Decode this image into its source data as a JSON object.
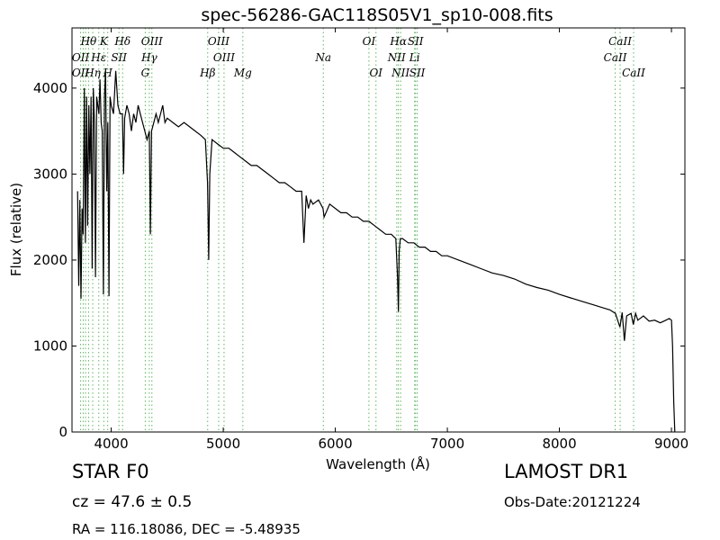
{
  "chart_data": {
    "type": "line",
    "title": "spec-56286-GAC118S05V1_sp10-008.fits",
    "xlabel": "Wavelength (Å)",
    "ylabel": "Flux (relative)",
    "xlim": [
      3650,
      9120
    ],
    "ylim": [
      0,
      4700
    ],
    "xticks": [
      4000,
      5000,
      6000,
      7000,
      8000,
      9000
    ],
    "yticks": [
      0,
      1000,
      2000,
      3000,
      4000
    ],
    "grid": false,
    "series": [
      {
        "x": [
          3700,
          3710,
          3720,
          3730,
          3740,
          3750,
          3760,
          3770,
          3780,
          3790,
          3800,
          3810,
          3820,
          3830,
          3840,
          3850,
          3860,
          3870,
          3880,
          3890,
          3900,
          3910,
          3920,
          3930,
          3940,
          3950,
          3960,
          3970,
          3980,
          3990,
          4000,
          4020,
          4040,
          4060,
          4080,
          4100,
          4110,
          4120,
          4140,
          4160,
          4180,
          4200,
          4220,
          4240,
          4260,
          4280,
          4300,
          4320,
          4340,
          4350,
          4360,
          4380,
          4400,
          4420,
          4440,
          4460,
          4480,
          4500,
          4550,
          4600,
          4650,
          4700,
          4750,
          4800,
          4840,
          4860,
          4870,
          4880,
          4900,
          4950,
          5000,
          5050,
          5100,
          5150,
          5200,
          5250,
          5300,
          5350,
          5400,
          5450,
          5500,
          5550,
          5600,
          5650,
          5700,
          5720,
          5740,
          5760,
          5780,
          5800,
          5850,
          5890,
          5900,
          5950,
          6000,
          6050,
          6100,
          6150,
          6200,
          6250,
          6300,
          6350,
          6400,
          6450,
          6500,
          6540,
          6555,
          6563,
          6570,
          6580,
          6600,
          6650,
          6700,
          6750,
          6800,
          6850,
          6900,
          6950,
          7000,
          7100,
          7200,
          7300,
          7400,
          7500,
          7600,
          7700,
          7800,
          7900,
          8000,
          8100,
          8200,
          8300,
          8400,
          8450,
          8500,
          8540,
          8560,
          8580,
          8600,
          8640,
          8660,
          8680,
          8700,
          8750,
          8800,
          8850,
          8900,
          8950,
          8980,
          9000,
          9010,
          9020,
          9030
        ],
        "values": [
          2800,
          1700,
          2700,
          1550,
          2600,
          2300,
          4000,
          2200,
          3900,
          2400,
          3800,
          3000,
          3900,
          1900,
          4000,
          3600,
          1800,
          3900,
          3800,
          3700,
          4100,
          3600,
          3500,
          1600,
          3900,
          4200,
          2800,
          3600,
          1580,
          3900,
          3800,
          3700,
          4200,
          3800,
          3700,
          3700,
          3000,
          3650,
          3800,
          3700,
          3500,
          3700,
          3600,
          3800,
          3700,
          3600,
          3500,
          3400,
          3500,
          2300,
          3500,
          3600,
          3700,
          3600,
          3700,
          3800,
          3600,
          3650,
          3600,
          3550,
          3600,
          3550,
          3500,
          3450,
          3400,
          2900,
          2000,
          3000,
          3400,
          3350,
          3300,
          3300,
          3250,
          3200,
          3150,
          3100,
          3100,
          3050,
          3000,
          2950,
          2900,
          2900,
          2850,
          2800,
          2800,
          2200,
          2750,
          2600,
          2700,
          2650,
          2700,
          2600,
          2500,
          2650,
          2600,
          2550,
          2550,
          2500,
          2500,
          2450,
          2450,
          2400,
          2350,
          2300,
          2300,
          2250,
          1800,
          1400,
          2100,
          2250,
          2250,
          2200,
          2200,
          2150,
          2150,
          2100,
          2100,
          2050,
          2050,
          2000,
          1950,
          1900,
          1850,
          1820,
          1780,
          1720,
          1680,
          1650,
          1600,
          1560,
          1520,
          1480,
          1440,
          1420,
          1380,
          1220,
          1390,
          1060,
          1350,
          1380,
          1250,
          1380,
          1300,
          1350,
          1290,
          1300,
          1270,
          1300,
          1320,
          1300,
          1000,
          350,
          0
        ]
      }
    ],
    "annotations": [
      {
        "label": "Hθ",
        "x": 3798,
        "row": 1
      },
      {
        "label": "K",
        "x": 3934,
        "row": 1
      },
      {
        "label": "Hδ",
        "x": 4102,
        "row": 1
      },
      {
        "label": "OIII",
        "x": 4363,
        "row": 1
      },
      {
        "label": "OIII",
        "x": 4959,
        "row": 1
      },
      {
        "label": "OI",
        "x": 6300,
        "row": 1
      },
      {
        "label": "Hα",
        "x": 6563,
        "row": 1
      },
      {
        "label": "SII",
        "x": 6716,
        "row": 1
      },
      {
        "label": "CaII",
        "x": 8542,
        "row": 1
      },
      {
        "label": "OII",
        "x": 3727,
        "row": 2
      },
      {
        "label": "Hε",
        "x": 3889,
        "row": 2
      },
      {
        "label": "SII",
        "x": 4069,
        "row": 2
      },
      {
        "label": "Hγ",
        "x": 4340,
        "row": 2
      },
      {
        "label": "OIII",
        "x": 5007,
        "row": 2
      },
      {
        "label": "Na",
        "x": 5893,
        "row": 2
      },
      {
        "label": "NII",
        "x": 6548,
        "row": 2
      },
      {
        "label": "Li",
        "x": 6708,
        "row": 2
      },
      {
        "label": "CaII",
        "x": 8498,
        "row": 2
      },
      {
        "label": "OII",
        "x": 3727,
        "row": 3
      },
      {
        "label": "Hη",
        "x": 3835,
        "row": 3
      },
      {
        "label": "H",
        "x": 3969,
        "row": 3
      },
      {
        "label": "G",
        "x": 4304,
        "row": 3
      },
      {
        "label": "Hβ",
        "x": 4861,
        "row": 3
      },
      {
        "label": "Mg",
        "x": 5175,
        "row": 3
      },
      {
        "label": "OI",
        "x": 6363,
        "row": 3
      },
      {
        "label": "NII",
        "x": 6583,
        "row": 3
      },
      {
        "label": "SII",
        "x": 6731,
        "row": 3
      },
      {
        "label": "CaII",
        "x": 8662,
        "row": 3
      }
    ],
    "line_markers": [
      3727,
      3750,
      3771,
      3798,
      3835,
      3889,
      3934,
      3969,
      4069,
      4102,
      4304,
      4340,
      4363,
      4861,
      4959,
      5007,
      5175,
      5893,
      6300,
      6363,
      6548,
      6563,
      6583,
      6708,
      6716,
      6731,
      8498,
      8542,
      8662
    ],
    "colors": {
      "spectrum": "#000000",
      "markers": "#5cb85c"
    }
  },
  "footer": {
    "class": "STAR   F0",
    "survey": "LAMOST DR1",
    "cz": "cz = 47.6 ± 0.5",
    "obs_date": "Obs-Date:20121224",
    "radec": "RA = 116.18086, DEC = -5.48935"
  }
}
